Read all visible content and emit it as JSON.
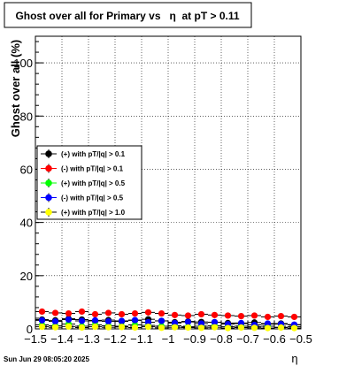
{
  "chart_data": {
    "type": "scatter",
    "title": "Ghost over all for Primary vs   η  at pT > 0.11",
    "xlabel": "η",
    "ylabel": "Ghost over all (%)",
    "xlim": [
      -1.5,
      -0.5
    ],
    "ylim": [
      0,
      110
    ],
    "x_ticks": [
      -1.5,
      -1.4,
      -1.3,
      -1.2,
      -1.1,
      -1.0,
      -0.9,
      -0.8,
      -0.7,
      -0.6,
      -0.5
    ],
    "x_tick_labels": [
      "−1.5",
      "−1.4",
      "−1.3",
      "−1.2",
      "−1.1",
      "−1",
      "−0.9",
      "−0.8",
      "−0.7",
      "−0.6",
      "−0.5"
    ],
    "y_ticks": [
      0,
      20,
      40,
      60,
      80,
      100
    ],
    "y_tick_labels": [
      "0",
      "20",
      "40",
      "60",
      "80",
      "100"
    ],
    "grid": true,
    "legend_position": "middle-left",
    "series": [
      {
        "name": "(+) with pT/|q| > 0.1",
        "color": "#000000",
        "x": [
          -1.475,
          -1.425,
          -1.375,
          -1.325,
          -1.275,
          -1.225,
          -1.175,
          -1.125,
          -1.075,
          -1.025,
          -0.975,
          -0.925,
          -0.875,
          -0.825,
          -0.775,
          -0.725,
          -0.675,
          -0.625,
          -0.575,
          -0.525
        ],
        "values": [
          3.5,
          3.2,
          3.8,
          3.5,
          3.0,
          3.3,
          2.8,
          3.2,
          3.6,
          3.0,
          2.5,
          2.8,
          2.6,
          2.5,
          2.2,
          2.0,
          2.4,
          1.8,
          2.0,
          1.5
        ]
      },
      {
        "name": "(-) with pT/|q| > 0.1",
        "color": "#ff0000",
        "x": [
          -1.475,
          -1.425,
          -1.375,
          -1.325,
          -1.275,
          -1.225,
          -1.175,
          -1.125,
          -1.075,
          -1.025,
          -0.975,
          -0.925,
          -0.875,
          -0.825,
          -0.775,
          -0.725,
          -0.675,
          -0.625,
          -0.575,
          -0.525
        ],
        "values": [
          6.5,
          6.0,
          5.8,
          6.5,
          5.5,
          6.0,
          5.5,
          5.8,
          6.2,
          5.8,
          5.2,
          5.0,
          5.5,
          5.2,
          5.0,
          4.8,
          5.0,
          4.5,
          4.8,
          4.5
        ]
      },
      {
        "name": "(+) with pT/|q| > 0.5",
        "color": "#00ff00",
        "x": [
          -1.475,
          -1.425,
          -1.375,
          -1.325,
          -1.275,
          -1.225,
          -1.175,
          -1.125,
          -1.075,
          -1.025,
          -0.975,
          -0.925,
          -0.875,
          -0.825,
          -0.775,
          -0.725,
          -0.675,
          -0.625,
          -0.575,
          -0.525
        ],
        "values": [
          1.5,
          1.2,
          1.8,
          1.0,
          1.5,
          1.2,
          1.0,
          1.5,
          1.3,
          1.0,
          1.2,
          0.8,
          1.0,
          1.2,
          0.8,
          1.0,
          0.8,
          1.0,
          0.6,
          0.8
        ]
      },
      {
        "name": "(-) with pT/|q| > 0.5",
        "color": "#0000ff",
        "x": [
          -1.475,
          -1.425,
          -1.375,
          -1.325,
          -1.275,
          -1.225,
          -1.175,
          -1.125,
          -1.075,
          -1.025,
          -0.975,
          -0.925,
          -0.875,
          -0.825,
          -0.775,
          -0.725,
          -0.675,
          -0.625,
          -0.575,
          -0.525
        ],
        "values": [
          3.2,
          2.8,
          3.5,
          3.0,
          3.2,
          2.8,
          3.0,
          3.3,
          2.5,
          3.0,
          2.2,
          2.6,
          2.0,
          2.5,
          1.8,
          2.2,
          1.5,
          2.0,
          1.8,
          1.6
        ]
      },
      {
        "name": "(+) with pT/|q| > 1.0",
        "color": "#ffff00",
        "x": [
          -1.475,
          -1.425,
          -1.375,
          -1.325,
          -1.275,
          -1.225,
          -1.175,
          -1.125,
          -1.075,
          -1.025,
          -0.975,
          -0.925,
          -0.875,
          -0.825,
          -0.775,
          -0.725,
          -0.675,
          -0.625,
          -0.575,
          -0.525
        ],
        "values": [
          0.8,
          0.6,
          0.9,
          0.5,
          0.8,
          0.6,
          0.7,
          0.5,
          0.8,
          0.4,
          0.6,
          0.5,
          0.4,
          0.6,
          0.3,
          0.5,
          0.4,
          0.3,
          0.5,
          0.3
        ]
      }
    ]
  },
  "footer": {
    "timestamp": "Sun Jun 29 08:05:20 2025"
  }
}
